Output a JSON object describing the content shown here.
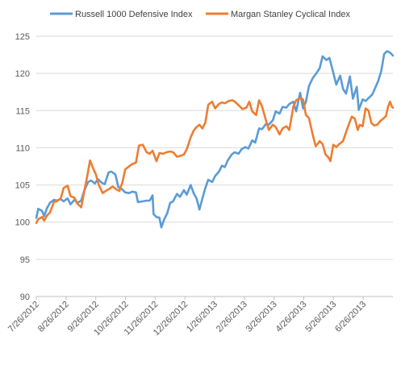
{
  "chart_data": {
    "type": "line",
    "title": "",
    "xlabel": "",
    "ylabel": "",
    "ylim": [
      90,
      125
    ],
    "yticks": [
      90,
      95,
      100,
      105,
      110,
      115,
      120,
      125
    ],
    "xlim": [
      "2012-07-26",
      "2013-07-26"
    ],
    "x_tick_labels": [
      "7/26/2012",
      "8/26/2012",
      "9/26/2012",
      "10/26/2012",
      "11/26/2012",
      "12/26/2012",
      "1/26/2013",
      "2/26/2013",
      "3/26/2013",
      "4/26/2013",
      "5/26/2013",
      "6/26/2013"
    ],
    "grid": "horizontal",
    "legend": "top",
    "series": [
      {
        "name": "Russell 1000 Defensive Index",
        "color": "#5B9BD5",
        "points": [
          [
            "2012-07-26",
            100.6
          ],
          [
            "2012-07-28",
            101.8
          ],
          [
            "2012-08-01",
            101.5
          ],
          [
            "2012-08-03",
            100.8
          ],
          [
            "2012-08-06",
            101.9
          ],
          [
            "2012-08-09",
            102.6
          ],
          [
            "2012-08-13",
            103.0
          ],
          [
            "2012-08-16",
            102.9
          ],
          [
            "2012-08-20",
            103.1
          ],
          [
            "2012-08-23",
            102.8
          ],
          [
            "2012-08-27",
            103.2
          ],
          [
            "2012-08-30",
            102.4
          ],
          [
            "2012-09-03",
            103.0
          ],
          [
            "2012-09-06",
            102.6
          ],
          [
            "2012-09-10",
            102.9
          ],
          [
            "2012-09-13",
            104.2
          ],
          [
            "2012-09-17",
            105.4
          ],
          [
            "2012-09-20",
            105.6
          ],
          [
            "2012-09-24",
            105.2
          ],
          [
            "2012-09-27",
            105.8
          ],
          [
            "2012-10-01",
            105.3
          ],
          [
            "2012-10-04",
            105.1
          ],
          [
            "2012-10-08",
            106.7
          ],
          [
            "2012-10-11",
            106.8
          ],
          [
            "2012-10-15",
            106.4
          ],
          [
            "2012-10-18",
            104.7
          ],
          [
            "2012-10-22",
            104.4
          ],
          [
            "2012-10-25",
            104.0
          ],
          [
            "2012-10-29",
            103.9
          ],
          [
            "2012-11-01",
            104.1
          ],
          [
            "2012-11-05",
            104.0
          ],
          [
            "2012-11-07",
            102.7
          ],
          [
            "2012-11-12",
            102.8
          ],
          [
            "2012-11-16",
            102.9
          ],
          [
            "2012-11-19",
            102.9
          ],
          [
            "2012-11-22",
            103.6
          ],
          [
            "2012-11-23",
            101.1
          ],
          [
            "2012-11-26",
            100.7
          ],
          [
            "2012-11-29",
            100.6
          ],
          [
            "2012-12-01",
            99.3
          ],
          [
            "2012-12-04",
            100.4
          ],
          [
            "2012-12-07",
            101.2
          ],
          [
            "2012-12-10",
            102.6
          ],
          [
            "2012-12-13",
            102.8
          ],
          [
            "2012-12-17",
            103.8
          ],
          [
            "2012-12-20",
            103.4
          ],
          [
            "2012-12-24",
            104.3
          ],
          [
            "2012-12-27",
            103.7
          ],
          [
            "2012-12-31",
            105.0
          ],
          [
            "2013-01-03",
            103.9
          ],
          [
            "2013-01-06",
            103.2
          ],
          [
            "2013-01-09",
            101.7
          ],
          [
            "2013-01-12",
            103.2
          ],
          [
            "2013-01-15",
            104.6
          ],
          [
            "2013-01-18",
            105.7
          ],
          [
            "2013-01-22",
            105.4
          ],
          [
            "2013-01-25",
            106.2
          ],
          [
            "2013-01-29",
            106.8
          ],
          [
            "2013-02-01",
            107.6
          ],
          [
            "2013-02-04",
            107.4
          ],
          [
            "2013-02-07",
            108.3
          ],
          [
            "2013-02-11",
            109.1
          ],
          [
            "2013-02-14",
            109.4
          ],
          [
            "2013-02-18",
            109.2
          ],
          [
            "2013-02-21",
            109.8
          ],
          [
            "2013-02-25",
            110.1
          ],
          [
            "2013-02-28",
            109.9
          ],
          [
            "2013-03-04",
            111.0
          ],
          [
            "2013-03-07",
            110.7
          ],
          [
            "2013-03-11",
            112.6
          ],
          [
            "2013-03-14",
            112.5
          ],
          [
            "2013-03-18",
            113.2
          ],
          [
            "2013-03-21",
            113.1
          ],
          [
            "2013-03-25",
            113.7
          ],
          [
            "2013-03-28",
            114.9
          ],
          [
            "2013-04-01",
            114.6
          ],
          [
            "2013-04-04",
            115.5
          ],
          [
            "2013-04-08",
            115.4
          ],
          [
            "2013-04-11",
            115.9
          ],
          [
            "2013-04-15",
            116.2
          ],
          [
            "2013-04-18",
            114.9
          ],
          [
            "2013-04-22",
            117.4
          ],
          [
            "2013-04-25",
            115.3
          ],
          [
            "2013-04-28",
            116.2
          ],
          [
            "2013-05-01",
            118.3
          ],
          [
            "2013-05-05",
            119.4
          ],
          [
            "2013-05-08",
            119.9
          ],
          [
            "2013-05-12",
            120.7
          ],
          [
            "2013-05-15",
            122.3
          ],
          [
            "2013-05-19",
            121.8
          ],
          [
            "2013-05-22",
            122.1
          ],
          [
            "2013-05-25",
            120.6
          ],
          [
            "2013-05-29",
            118.5
          ],
          [
            "2013-06-02",
            119.7
          ],
          [
            "2013-06-05",
            117.9
          ],
          [
            "2013-06-08",
            117.3
          ],
          [
            "2013-06-12",
            119.6
          ],
          [
            "2013-06-15",
            116.6
          ],
          [
            "2013-06-19",
            118.2
          ],
          [
            "2013-06-21",
            115.1
          ],
          [
            "2013-06-25",
            116.5
          ],
          [
            "2013-06-28",
            116.3
          ],
          [
            "2013-07-02",
            116.8
          ],
          [
            "2013-07-05",
            117.2
          ],
          [
            "2013-07-08",
            118.1
          ],
          [
            "2013-07-11",
            119.0
          ],
          [
            "2013-07-14",
            120.3
          ],
          [
            "2013-07-17",
            122.6
          ],
          [
            "2013-07-20",
            123.0
          ],
          [
            "2013-07-23",
            122.8
          ],
          [
            "2013-07-26",
            122.4
          ]
        ]
      },
      {
        "name": "Margan Stanley Cyclical Index",
        "color": "#ED7D31",
        "points": [
          [
            "2012-07-26",
            99.9
          ],
          [
            "2012-07-28",
            100.4
          ],
          [
            "2012-08-01",
            100.7
          ],
          [
            "2012-08-03",
            100.2
          ],
          [
            "2012-08-06",
            100.9
          ],
          [
            "2012-08-09",
            101.3
          ],
          [
            "2012-08-13",
            102.7
          ],
          [
            "2012-08-16",
            102.8
          ],
          [
            "2012-08-20",
            103.2
          ],
          [
            "2012-08-23",
            104.6
          ],
          [
            "2012-08-27",
            104.9
          ],
          [
            "2012-08-30",
            103.5
          ],
          [
            "2012-09-03",
            103.3
          ],
          [
            "2012-09-06",
            102.5
          ],
          [
            "2012-09-10",
            102.0
          ],
          [
            "2012-09-13",
            104.1
          ],
          [
            "2012-09-16",
            106.1
          ],
          [
            "2012-09-19",
            108.3
          ],
          [
            "2012-09-22",
            107.3
          ],
          [
            "2012-09-25",
            106.4
          ],
          [
            "2012-09-28",
            105.0
          ],
          [
            "2012-10-02",
            103.9
          ],
          [
            "2012-10-05",
            104.2
          ],
          [
            "2012-10-09",
            104.5
          ],
          [
            "2012-10-12",
            104.8
          ],
          [
            "2012-10-16",
            104.4
          ],
          [
            "2012-10-19",
            104.2
          ],
          [
            "2012-10-22",
            105.3
          ],
          [
            "2012-10-25",
            107.1
          ],
          [
            "2012-10-29",
            107.5
          ],
          [
            "2012-11-01",
            107.8
          ],
          [
            "2012-11-05",
            108.0
          ],
          [
            "2012-11-08",
            110.3
          ],
          [
            "2012-11-12",
            110.4
          ],
          [
            "2012-11-16",
            109.4
          ],
          [
            "2012-11-19",
            109.2
          ],
          [
            "2012-11-22",
            109.6
          ],
          [
            "2012-11-26",
            108.2
          ],
          [
            "2012-11-29",
            109.3
          ],
          [
            "2012-12-03",
            109.2
          ],
          [
            "2012-12-06",
            109.4
          ],
          [
            "2012-12-10",
            109.5
          ],
          [
            "2012-12-13",
            109.4
          ],
          [
            "2012-12-17",
            108.8
          ],
          [
            "2012-12-20",
            108.9
          ],
          [
            "2012-12-24",
            109.1
          ],
          [
            "2012-12-27",
            109.8
          ],
          [
            "2012-12-31",
            111.4
          ],
          [
            "2013-01-03",
            112.3
          ],
          [
            "2013-01-06",
            112.8
          ],
          [
            "2013-01-09",
            113.1
          ],
          [
            "2013-01-12",
            112.6
          ],
          [
            "2013-01-15",
            113.4
          ],
          [
            "2013-01-18",
            115.8
          ],
          [
            "2013-01-22",
            116.2
          ],
          [
            "2013-01-25",
            115.3
          ],
          [
            "2013-01-29",
            115.9
          ],
          [
            "2013-02-01",
            116.1
          ],
          [
            "2013-02-04",
            116.0
          ],
          [
            "2013-02-08",
            116.3
          ],
          [
            "2013-02-12",
            116.4
          ],
          [
            "2013-02-15",
            116.1
          ],
          [
            "2013-02-19",
            115.6
          ],
          [
            "2013-02-22",
            115.2
          ],
          [
            "2013-02-26",
            115.4
          ],
          [
            "2013-03-01",
            116.2
          ],
          [
            "2013-03-04",
            114.9
          ],
          [
            "2013-03-08",
            114.4
          ],
          [
            "2013-03-11",
            116.4
          ],
          [
            "2013-03-14",
            115.6
          ],
          [
            "2013-03-18",
            113.7
          ],
          [
            "2013-03-21",
            112.4
          ],
          [
            "2013-03-25",
            113.1
          ],
          [
            "2013-03-28",
            112.8
          ],
          [
            "2013-04-01",
            111.8
          ],
          [
            "2013-04-04",
            112.6
          ],
          [
            "2013-04-08",
            112.9
          ],
          [
            "2013-04-11",
            112.4
          ],
          [
            "2013-04-15",
            115.5
          ],
          [
            "2013-04-18",
            116.4
          ],
          [
            "2013-04-22",
            116.7
          ],
          [
            "2013-04-25",
            116.5
          ],
          [
            "2013-04-28",
            114.4
          ],
          [
            "2013-05-01",
            114.0
          ],
          [
            "2013-05-05",
            111.7
          ],
          [
            "2013-05-08",
            110.2
          ],
          [
            "2013-05-12",
            110.9
          ],
          [
            "2013-05-15",
            110.5
          ],
          [
            "2013-05-18",
            109.1
          ],
          [
            "2013-05-21",
            108.7
          ],
          [
            "2013-05-23",
            108.2
          ],
          [
            "2013-05-26",
            110.4
          ],
          [
            "2013-05-29",
            110.1
          ],
          [
            "2013-06-01",
            110.5
          ],
          [
            "2013-06-05",
            110.9
          ],
          [
            "2013-06-08",
            112.1
          ],
          [
            "2013-06-11",
            113.2
          ],
          [
            "2013-06-14",
            114.2
          ],
          [
            "2013-06-17",
            113.9
          ],
          [
            "2013-06-20",
            112.4
          ],
          [
            "2013-06-22",
            113.1
          ],
          [
            "2013-06-25",
            112.9
          ],
          [
            "2013-06-28",
            115.3
          ],
          [
            "2013-07-01",
            115.0
          ],
          [
            "2013-07-04",
            113.3
          ],
          [
            "2013-07-07",
            113.0
          ],
          [
            "2013-07-10",
            113.1
          ],
          [
            "2013-07-13",
            113.6
          ],
          [
            "2013-07-16",
            113.9
          ],
          [
            "2013-07-19",
            114.3
          ],
          [
            "2013-07-21",
            115.5
          ],
          [
            "2013-07-23",
            116.2
          ],
          [
            "2013-07-25",
            115.5
          ],
          [
            "2013-07-26",
            115.4
          ]
        ]
      }
    ]
  }
}
